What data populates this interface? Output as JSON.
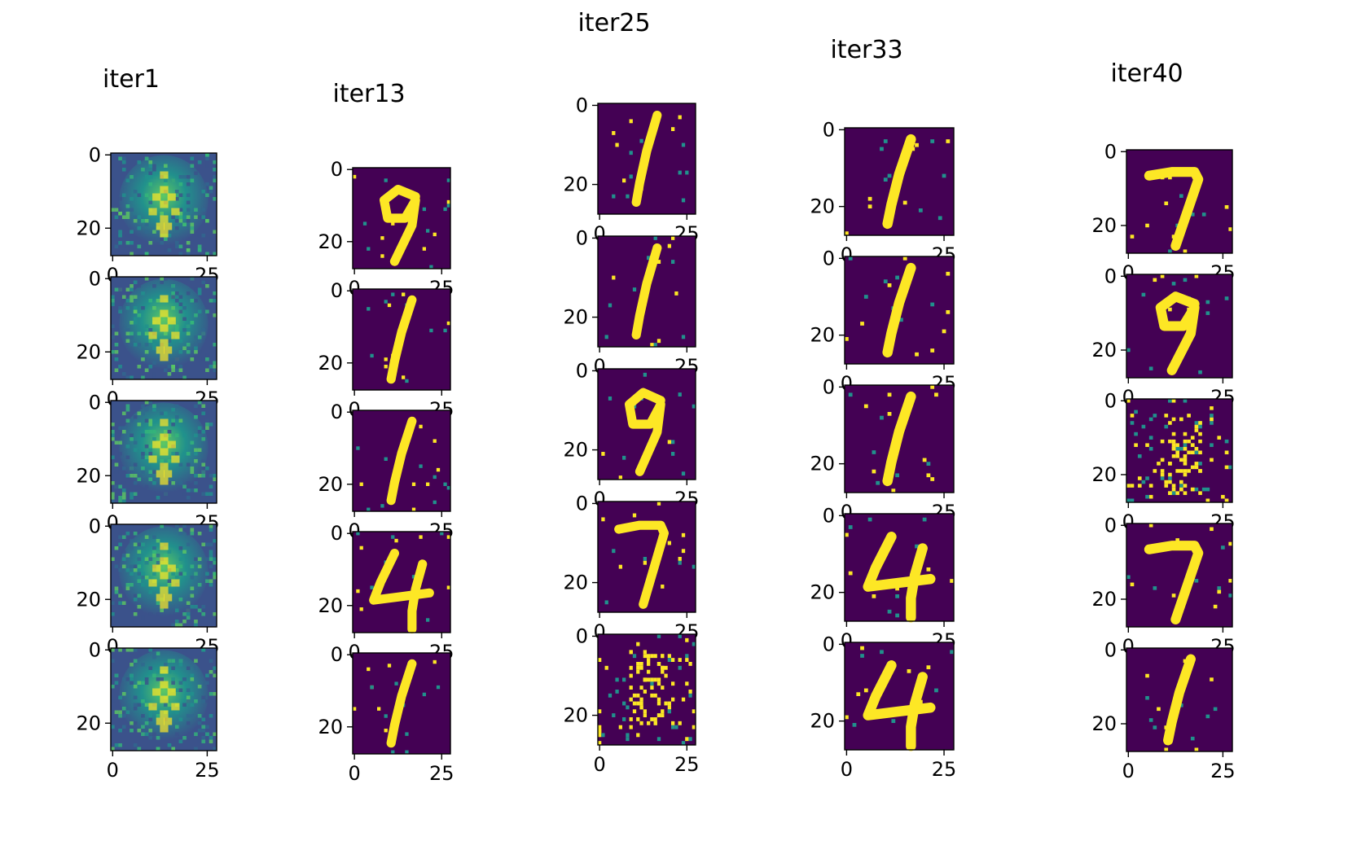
{
  "chart_data": {
    "type": "image_grid",
    "colormap": "viridis",
    "image_size": [
      28,
      28
    ],
    "x_ticks": [
      0,
      25
    ],
    "y_ticks": [
      0,
      20
    ],
    "columns": [
      {
        "title": "iter1",
        "digits": [
          "blur",
          "blur",
          "blur",
          "blur",
          "blur"
        ]
      },
      {
        "title": "iter13",
        "digits": [
          "9",
          "1",
          "1",
          "4",
          "1"
        ]
      },
      {
        "title": "iter25",
        "digits": [
          "1",
          "1",
          "9",
          "7",
          "noise"
        ]
      },
      {
        "title": "iter33",
        "digits": [
          "1",
          "1",
          "1",
          "4",
          "4"
        ]
      },
      {
        "title": "iter40",
        "digits": [
          "7",
          "9",
          "noise",
          "7",
          "1"
        ]
      }
    ]
  },
  "colors": {
    "background": "#440154",
    "low": "#3b528b",
    "mid": "#21918c",
    "high": "#5ec962",
    "peak": "#fde725"
  }
}
